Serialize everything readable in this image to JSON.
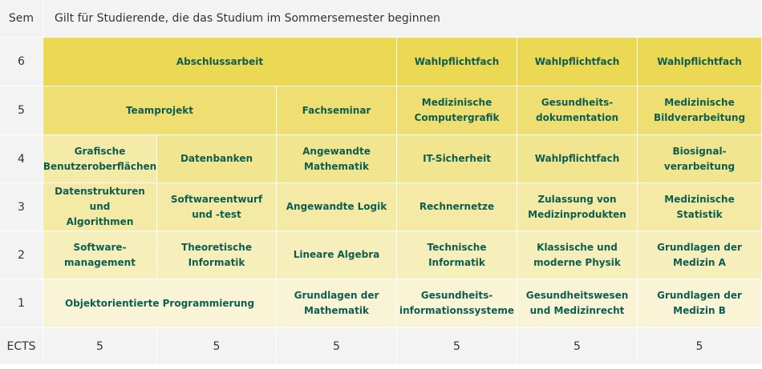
{
  "header": {
    "sem_label": "Sem",
    "title": "Gilt für Studierende, die das Studium im Sommersemester beginnen"
  },
  "rows": {
    "r6": {
      "sem": "6",
      "m": [
        "Abschlussarbeit",
        "Wahlpflichtfach",
        "Wahlpflichtfach",
        "Wahlpflichtfach"
      ]
    },
    "r5": {
      "sem": "5",
      "m": [
        "Teamprojekt",
        "Fachseminar",
        "Medizinische\nComputergrafik",
        "Gesundheits-\ndokumentation",
        "Medizinische\nBildverarbeitung"
      ]
    },
    "r4": {
      "sem": "4",
      "m": [
        "Grafische\nBenutzeroberflächen",
        "Datenbanken",
        "Angewandte\nMathematik",
        "IT-Sicherheit",
        "Wahlpflichtfach",
        "Biosignal-\nverarbeitung"
      ]
    },
    "r3": {
      "sem": "3",
      "m": [
        "Datenstrukturen und\nAlgorithmen",
        "Softwareentwurf\nund -test",
        "Angewandte Logik",
        "Rechnernetze",
        "Zulassung von\nMedizinprodukten",
        "Medizinische Statistik"
      ]
    },
    "r2": {
      "sem": "2",
      "m": [
        "Software-\nmanagement",
        "Theoretische\nInformatik",
        "Lineare Algebra",
        "Technische Informatik",
        "Klassische und\nmoderne Physik",
        "Grundlagen der\nMedizin A"
      ]
    },
    "r1": {
      "sem": "1",
      "m": [
        "Objektorientierte Programmierung",
        "Grundlagen der\nMathematik",
        "Gesundheits-\ninformationssysteme",
        "Gesundheitswesen\nund Medizinrecht",
        "Grundlagen der\nMedizin B"
      ]
    }
  },
  "ects": {
    "label": "ECTS",
    "values": [
      "5",
      "5",
      "5",
      "5",
      "5",
      "5"
    ]
  },
  "colors": {
    "text": "#0d5e50",
    "row6": "#ecd953",
    "row1": "#faf4d6",
    "header_bg": "#f3f3f3"
  }
}
